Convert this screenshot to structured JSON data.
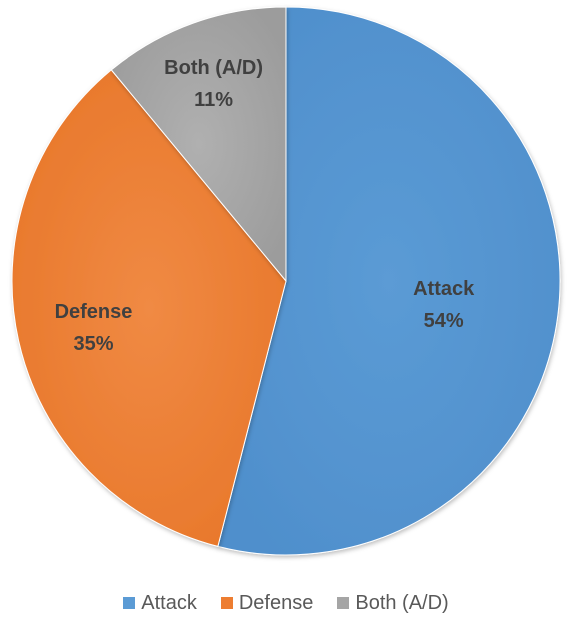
{
  "chart_data": {
    "type": "pie",
    "title": "",
    "categories": [
      "Attack",
      "Defense",
      "Both (A/D)"
    ],
    "values": [
      54,
      35,
      11
    ],
    "unit": "%",
    "data_labels": [
      {
        "name": "Attack",
        "value": "54%"
      },
      {
        "name": "Defense",
        "value": "35%"
      },
      {
        "name": "Both (A/D)",
        "value": "11%"
      }
    ],
    "colors": [
      "#5b9bd5",
      "#ed7d31",
      "#a5a5a5"
    ],
    "start_angle_deg": 0,
    "direction": "clockwise",
    "legend": {
      "position": "bottom",
      "entries": [
        "Attack",
        "Defense",
        "Both (A/D)"
      ]
    }
  }
}
